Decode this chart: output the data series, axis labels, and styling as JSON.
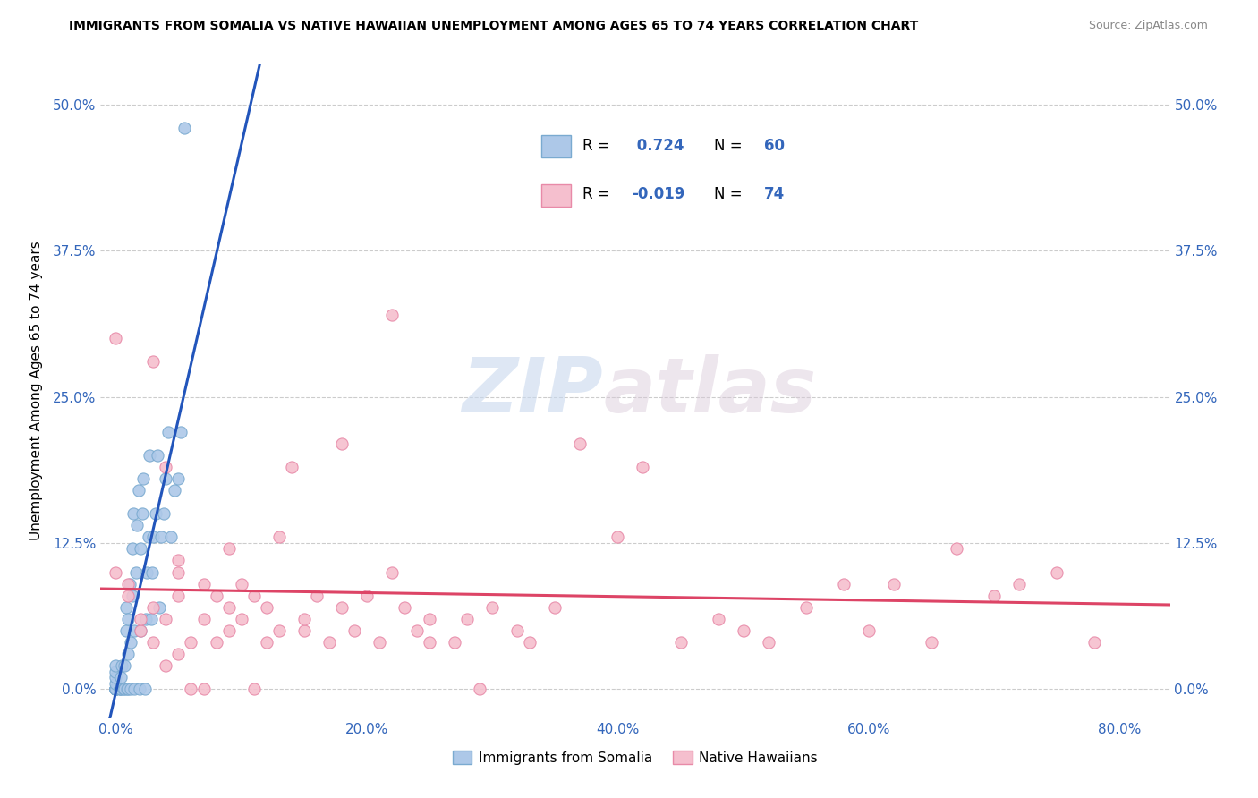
{
  "title": "IMMIGRANTS FROM SOMALIA VS NATIVE HAWAIIAN UNEMPLOYMENT AMONG AGES 65 TO 74 YEARS CORRELATION CHART",
  "source": "Source: ZipAtlas.com",
  "ylabel": "Unemployment Among Ages 65 to 74 years",
  "xlabel_ticks": [
    "0.0%",
    "20.0%",
    "40.0%",
    "60.0%",
    "80.0%"
  ],
  "xlabel_tick_vals": [
    0.0,
    0.2,
    0.4,
    0.6,
    0.8
  ],
  "ylabel_ticks": [
    "0.0%",
    "12.5%",
    "25.0%",
    "37.5%",
    "50.0%"
  ],
  "ylabel_tick_vals": [
    0.0,
    0.125,
    0.25,
    0.375,
    0.5
  ],
  "xlim": [
    -0.012,
    0.84
  ],
  "ylim": [
    -0.025,
    0.535
  ],
  "somalia_color": "#adc8e8",
  "somalia_edge": "#7aaad0",
  "native_hawaiian_color": "#f5bfce",
  "native_hawaiian_edge": "#e88aa8",
  "somalia_R": 0.724,
  "somalia_N": 60,
  "native_hawaiian_R": -0.019,
  "native_hawaiian_N": 74,
  "regression_somalia_color": "#2255bb",
  "regression_native_hawaiian_color": "#dd4466",
  "watermark_zip": "ZIP",
  "watermark_atlas": "atlas",
  "legend_label_somalia": "Immigrants from Somalia",
  "legend_label_native": "Native Hawaiians",
  "somalia_x": [
    0.0,
    0.0,
    0.0,
    0.0,
    0.0,
    0.0,
    0.0,
    0.0,
    0.0,
    0.0,
    0.003,
    0.003,
    0.004,
    0.004,
    0.005,
    0.006,
    0.007,
    0.007,
    0.008,
    0.008,
    0.009,
    0.01,
    0.01,
    0.01,
    0.011,
    0.012,
    0.012,
    0.013,
    0.013,
    0.014,
    0.015,
    0.015,
    0.016,
    0.017,
    0.018,
    0.019,
    0.02,
    0.02,
    0.021,
    0.022,
    0.023,
    0.024,
    0.025,
    0.026,
    0.027,
    0.028,
    0.029,
    0.03,
    0.032,
    0.033,
    0.035,
    0.036,
    0.038,
    0.04,
    0.042,
    0.044,
    0.047,
    0.05,
    0.052,
    0.055
  ],
  "somalia_y": [
    0.0,
    0.0,
    0.0,
    0.0,
    0.0,
    0.0,
    0.005,
    0.01,
    0.015,
    0.02,
    0.0,
    0.0,
    0.0,
    0.01,
    0.02,
    0.0,
    0.0,
    0.02,
    0.05,
    0.07,
    0.0,
    0.0,
    0.03,
    0.06,
    0.09,
    0.0,
    0.04,
    0.08,
    0.12,
    0.15,
    0.0,
    0.05,
    0.1,
    0.14,
    0.17,
    0.0,
    0.05,
    0.12,
    0.15,
    0.18,
    0.0,
    0.06,
    0.1,
    0.13,
    0.2,
    0.06,
    0.1,
    0.13,
    0.15,
    0.2,
    0.07,
    0.13,
    0.15,
    0.18,
    0.22,
    0.13,
    0.17,
    0.18,
    0.22,
    0.48
  ],
  "native_x": [
    0.0,
    0.0,
    0.01,
    0.01,
    0.02,
    0.02,
    0.03,
    0.03,
    0.03,
    0.04,
    0.04,
    0.04,
    0.05,
    0.05,
    0.05,
    0.05,
    0.06,
    0.06,
    0.07,
    0.07,
    0.07,
    0.08,
    0.08,
    0.09,
    0.09,
    0.09,
    0.1,
    0.1,
    0.11,
    0.11,
    0.12,
    0.12,
    0.13,
    0.13,
    0.14,
    0.15,
    0.15,
    0.16,
    0.17,
    0.18,
    0.18,
    0.19,
    0.2,
    0.21,
    0.22,
    0.22,
    0.23,
    0.24,
    0.25,
    0.25,
    0.27,
    0.28,
    0.29,
    0.3,
    0.32,
    0.33,
    0.35,
    0.37,
    0.4,
    0.42,
    0.45,
    0.48,
    0.5,
    0.52,
    0.55,
    0.58,
    0.6,
    0.62,
    0.65,
    0.67,
    0.7,
    0.72,
    0.75,
    0.78
  ],
  "native_y": [
    0.1,
    0.3,
    0.08,
    0.09,
    0.05,
    0.06,
    0.04,
    0.07,
    0.28,
    0.02,
    0.06,
    0.19,
    0.03,
    0.08,
    0.1,
    0.11,
    0.0,
    0.04,
    0.0,
    0.06,
    0.09,
    0.04,
    0.08,
    0.05,
    0.07,
    0.12,
    0.06,
    0.09,
    0.0,
    0.08,
    0.04,
    0.07,
    0.05,
    0.13,
    0.19,
    0.05,
    0.06,
    0.08,
    0.04,
    0.07,
    0.21,
    0.05,
    0.08,
    0.04,
    0.1,
    0.32,
    0.07,
    0.05,
    0.04,
    0.06,
    0.04,
    0.06,
    0.0,
    0.07,
    0.05,
    0.04,
    0.07,
    0.21,
    0.13,
    0.19,
    0.04,
    0.06,
    0.05,
    0.04,
    0.07,
    0.09,
    0.05,
    0.09,
    0.04,
    0.12,
    0.08,
    0.09,
    0.1,
    0.04
  ]
}
